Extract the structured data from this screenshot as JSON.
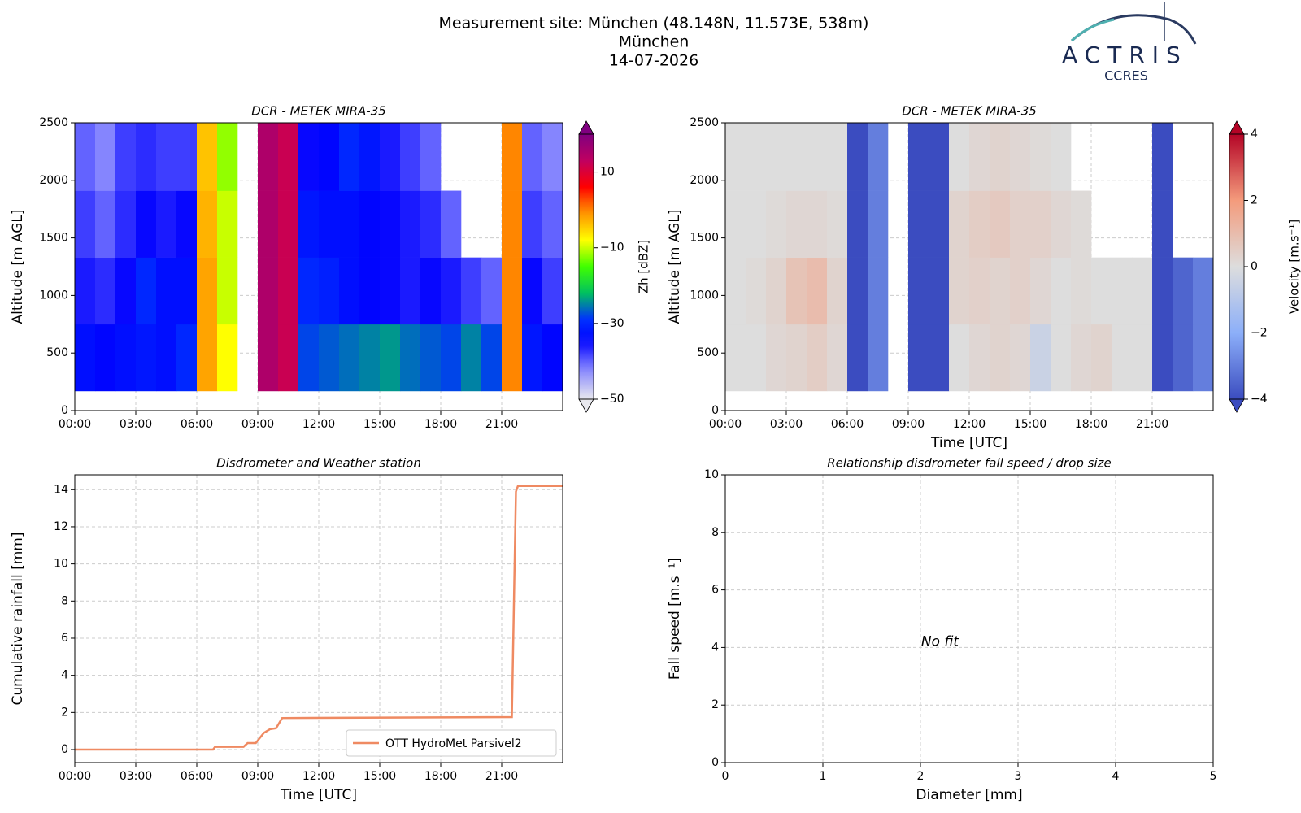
{
  "header": {
    "lines": [
      "Measurement site: München (48.148N, 11.573E, 538m)",
      "München",
      "14-07-2026"
    ],
    "logo": "ACTRIS",
    "logo_sub": "CCRES"
  },
  "chart_data": [
    {
      "type": "heatmap",
      "title": "DCR - METEK MIRA-35",
      "y_label": "Altitude [m AGL]",
      "xlim": [
        0,
        24
      ],
      "xticks": [
        {
          "value": 0,
          "label": "00:00"
        },
        {
          "value": 3,
          "label": "03:00"
        },
        {
          "value": 6,
          "label": "06:00"
        },
        {
          "value": 9,
          "label": "09:00"
        },
        {
          "value": 12,
          "label": "12:00"
        },
        {
          "value": 15,
          "label": "15:00"
        },
        {
          "value": 18,
          "label": "18:00"
        },
        {
          "value": 21,
          "label": "21:00"
        }
      ],
      "ylim": [
        0,
        2500
      ],
      "yticks": [
        0,
        500,
        1000,
        1500,
        2000,
        2500
      ],
      "grid": true,
      "xbins": [
        0,
        1,
        2,
        3,
        4,
        5,
        6,
        7,
        8,
        9,
        10,
        11,
        12,
        13,
        14,
        15,
        16,
        17,
        18,
        19,
        20,
        21,
        22,
        23,
        24
      ],
      "ybins": [
        170,
        750,
        1330,
        1910,
        2500
      ],
      "values": [
        [
          -33,
          -34,
          -33,
          -32,
          -33,
          -30,
          -2,
          -8,
          null,
          15,
          12,
          -28,
          -27,
          -26,
          -25,
          -24,
          -26,
          -27,
          -28,
          -25,
          -28,
          0,
          -32,
          -34
        ],
        [
          -36,
          -37,
          -35,
          -30,
          -33,
          -33,
          -2,
          -10,
          null,
          15,
          12,
          -30,
          -31,
          -33,
          -34,
          -35,
          -36,
          -35,
          -36,
          -38,
          -40,
          0,
          -35,
          -38
        ],
        [
          -38,
          -40,
          -37,
          -35,
          -36,
          -35,
          -3,
          -10,
          null,
          15,
          12,
          -32,
          -33,
          -33,
          -34,
          -35,
          -36,
          -37,
          -40,
          null,
          null,
          0,
          -38,
          -40
        ],
        [
          -40,
          -42,
          -38,
          -37,
          -38,
          -38,
          -4,
          -12,
          null,
          15,
          12,
          -35,
          -34,
          -30,
          -32,
          -36,
          -38,
          -40,
          null,
          null,
          null,
          0,
          -40,
          -42
        ]
      ],
      "colorbar": {
        "label": "Zh [dBZ]",
        "colormap": "zh",
        "zlim": [
          -50,
          20
        ],
        "zticks": [
          {
            "value": -50,
            "label": "−50"
          },
          {
            "value": -30,
            "label": "−30"
          },
          {
            "value": -10,
            "label": "−10"
          },
          10
        ]
      }
    },
    {
      "type": "heatmap",
      "title": "DCR - METEK MIRA-35",
      "y_label": "Altitude [m AGL]",
      "x_label": "Time [UTC]",
      "xlim": [
        0,
        24
      ],
      "xticks": [
        {
          "value": 0,
          "label": "00:00"
        },
        {
          "value": 3,
          "label": "03:00"
        },
        {
          "value": 6,
          "label": "06:00"
        },
        {
          "value": 9,
          "label": "09:00"
        },
        {
          "value": 12,
          "label": "12:00"
        },
        {
          "value": 15,
          "label": "15:00"
        },
        {
          "value": 18,
          "label": "18:00"
        },
        {
          "value": 21,
          "label": "21:00"
        }
      ],
      "ylim": [
        0,
        2500
      ],
      "yticks": [
        0,
        500,
        1000,
        1500,
        2000,
        2500
      ],
      "grid": true,
      "xbins": [
        0,
        1,
        2,
        3,
        4,
        5,
        6,
        7,
        8,
        9,
        10,
        11,
        12,
        13,
        14,
        15,
        16,
        17,
        18,
        19,
        20,
        21,
        22,
        23,
        24
      ],
      "ybins": [
        170,
        750,
        1330,
        1910,
        2500
      ],
      "values": [
        [
          0,
          0,
          0.2,
          0.3,
          0.5,
          0.2,
          -4,
          -3,
          null,
          -4,
          -4,
          0,
          0.2,
          0.3,
          0.2,
          -0.5,
          0,
          0.2,
          0.3,
          0,
          0,
          -4,
          -3.5,
          -3
        ],
        [
          0,
          0.1,
          0.3,
          0.8,
          1,
          0.3,
          -4,
          -3,
          null,
          -4,
          -4,
          0.3,
          0.4,
          0.3,
          0.4,
          0.2,
          0,
          0.1,
          0,
          0,
          0,
          -4,
          -3.5,
          -3
        ],
        [
          0,
          0,
          0.1,
          0.2,
          0.2,
          0.1,
          -4,
          -3,
          null,
          -4,
          -4,
          0.3,
          0.5,
          0.6,
          0.4,
          0.4,
          0.2,
          0.1,
          null,
          null,
          null,
          -4,
          null,
          null
        ],
        [
          0,
          0,
          0,
          0,
          0,
          0,
          -4,
          -3,
          null,
          -4,
          -4,
          0,
          0.2,
          0.3,
          0.2,
          0.1,
          0,
          null,
          null,
          null,
          null,
          -4,
          null,
          null
        ]
      ],
      "colorbar": {
        "label": "Velocity [m.s⁻¹]",
        "colormap": "coolwarm",
        "zlim": [
          -4,
          4
        ],
        "zticks": [
          {
            "value": -4,
            "label": "−4"
          },
          {
            "value": -2,
            "label": "−2"
          },
          0,
          2,
          4
        ]
      }
    },
    {
      "type": "line",
      "title": "Disdrometer and Weather station",
      "y_label": "Cumulative rainfall [mm]",
      "x_label": "Time [UTC]",
      "xlim": [
        0,
        24
      ],
      "xticks": [
        {
          "value": 0,
          "label": "00:00"
        },
        {
          "value": 3,
          "label": "03:00"
        },
        {
          "value": 6,
          "label": "06:00"
        },
        {
          "value": 9,
          "label": "09:00"
        },
        {
          "value": 12,
          "label": "12:00"
        },
        {
          "value": 15,
          "label": "15:00"
        },
        {
          "value": 18,
          "label": "18:00"
        },
        {
          "value": 21,
          "label": "21:00"
        }
      ],
      "ylim": [
        -0.7,
        14.8
      ],
      "yticks": [
        0,
        2,
        4,
        6,
        8,
        10,
        12,
        14
      ],
      "grid": true,
      "legend": "lower right",
      "x": [
        0,
        6.8,
        6.9,
        8.3,
        8.5,
        8.9,
        9.3,
        9.6,
        9.9,
        10.2,
        21.5,
        21.7,
        21.8,
        24
      ],
      "series": [
        {
          "name": "OTT HydroMet Parsivel2",
          "color": "#ef8a62",
          "values": [
            0,
            0,
            0.15,
            0.15,
            0.35,
            0.35,
            0.9,
            1.1,
            1.15,
            1.7,
            1.75,
            13.9,
            14.2,
            14.2
          ]
        }
      ]
    },
    {
      "type": "scatter",
      "title": "Relationship disdrometer fall speed / drop size",
      "y_label": "Fall speed [m.s⁻¹]",
      "x_label": "Diameter [mm]",
      "xlim": [
        0,
        5
      ],
      "xticks": [
        0,
        1,
        2,
        3,
        4,
        5
      ],
      "ylim": [
        0,
        10
      ],
      "yticks": [
        0,
        2,
        4,
        6,
        8,
        10
      ],
      "grid": true,
      "annotation": {
        "text": "No fit",
        "x": 2.2,
        "y": 4.2
      }
    }
  ]
}
